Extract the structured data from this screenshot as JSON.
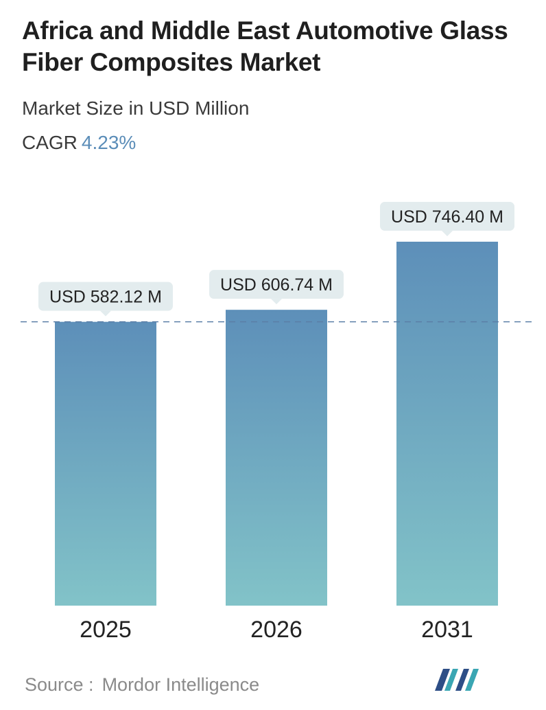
{
  "header": {
    "title": "Africa and Middle East Automotive Glass Fiber Composites Market",
    "subtitle": "Market Size in USD Million",
    "cagr_label": "CAGR",
    "cagr_value": "4.23%"
  },
  "chart_data": {
    "type": "bar",
    "categories": [
      "2025",
      "2026",
      "2031"
    ],
    "values": [
      582.12,
      606.74,
      746.4
    ],
    "data_labels": [
      "USD 582.12 M",
      "USD 606.74 M",
      "USD 746.40 M"
    ],
    "title": "Africa and Middle East Automotive Glass Fiber Composites Market",
    "ylabel": "",
    "xlabel": "",
    "grid": false,
    "reference_line": "dashed line at first value",
    "colors": {
      "bar_top": "#5d8fb9",
      "bar_bottom": "#82c3c8",
      "label_bg": "#e3ecee",
      "dashed": "#5b7fa6"
    }
  },
  "footer": {
    "source_label": "Source :",
    "source_value": "Mordor Intelligence",
    "logo_icon": "mordor-intelligence-logo-icon"
  }
}
